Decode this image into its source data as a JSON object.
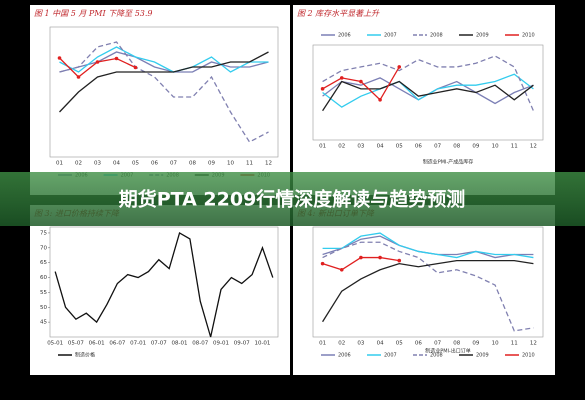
{
  "banner": {
    "title": "期货PTA 2209行情深度解读与趋势预测"
  },
  "chart_data": [
    {
      "type": "line",
      "title": "图 1 中国 5 月 PMI 下降至 53.9",
      "legend": "bottom",
      "categories": [
        "01",
        "02",
        "03",
        "04",
        "05",
        "06",
        "07",
        "08",
        "09",
        "10",
        "11",
        "12"
      ],
      "ylim": [
        36,
        62
      ],
      "series": [
        {
          "name": "2006",
          "color": "#7b7fb5",
          "values": [
            53,
            54,
            55,
            57,
            56,
            54,
            53,
            53,
            55,
            54,
            54,
            55
          ]
        },
        {
          "name": "2007",
          "color": "#33ccee",
          "values": [
            55,
            53,
            56,
            58,
            56,
            55,
            53,
            54,
            56,
            53,
            55,
            55
          ]
        },
        {
          "name": "2008",
          "color": "#8080b0",
          "dash": true,
          "values": [
            53,
            54,
            58,
            59,
            54,
            52,
            48,
            48,
            52,
            45,
            39,
            41
          ]
        },
        {
          "name": "2009",
          "color": "#222222",
          "values": [
            45,
            49,
            52,
            53,
            53,
            53,
            53,
            54,
            54,
            55,
            55,
            57
          ]
        },
        {
          "name": "2010",
          "color": "#e02020",
          "markers": true,
          "values": [
            55.8,
            52,
            55,
            55.7,
            53.9,
            null,
            null,
            null,
            null,
            null,
            null,
            null
          ]
        }
      ]
    },
    {
      "type": "line",
      "title": "图 2 库存水平显著上升",
      "legend": "top",
      "note": "制造业PMI-产成品库存",
      "categories": [
        "01",
        "02",
        "03",
        "04",
        "05",
        "06",
        "07",
        "08",
        "09",
        "10",
        "11",
        "12"
      ],
      "ylim": [
        36,
        62
      ],
      "series": [
        {
          "name": "2006",
          "color": "#7b7fb5",
          "values": [
            48,
            52,
            51,
            53,
            50,
            47,
            50,
            52,
            49,
            46,
            49,
            51
          ]
        },
        {
          "name": "2007",
          "color": "#33ccee",
          "values": [
            49,
            45,
            48,
            50,
            52,
            47,
            50,
            51,
            51,
            52,
            54,
            50
          ]
        },
        {
          "name": "2008",
          "color": "#8080b0",
          "dash": true,
          "values": [
            52,
            55,
            56,
            57,
            55,
            58,
            56,
            56,
            57,
            59,
            56,
            44
          ]
        },
        {
          "name": "2009",
          "color": "#222222",
          "values": [
            44,
            52,
            50,
            50,
            52,
            48,
            49,
            50,
            49,
            51,
            47,
            51
          ]
        },
        {
          "name": "2010",
          "color": "#e02020",
          "markers": true,
          "values": [
            50,
            53,
            52,
            47,
            56,
            null,
            null,
            null,
            null,
            null,
            null,
            null
          ]
        }
      ]
    },
    {
      "type": "line",
      "title": "图 3: 进口价格持续下降",
      "legend": "bottom",
      "categories": [
        "05-01",
        null,
        "05-07",
        null,
        "06-01",
        null,
        "06-07",
        null,
        "07-01",
        null,
        "07-07",
        null,
        "08-01",
        null,
        "08-07",
        null,
        "09-01",
        null,
        "09-07",
        null,
        "10-01",
        null
      ],
      "ylim": [
        40,
        77
      ],
      "yticks": [
        45,
        50,
        55,
        60,
        65,
        70,
        75
      ],
      "series": [
        {
          "name": "制造价格",
          "color": "#111111",
          "values": [
            62,
            50,
            46,
            48,
            45,
            51,
            58,
            61,
            60,
            62,
            66,
            63,
            75,
            73,
            52,
            40,
            56,
            60,
            58,
            61,
            70,
            60
          ]
        }
      ]
    },
    {
      "type": "line",
      "title": "图 4: 新出口订单下降",
      "legend": "bottom",
      "note": "制造业PMI-出口订单",
      "categories": [
        "01",
        "02",
        "03",
        "04",
        "05",
        "06",
        "07",
        "08",
        "09",
        "10",
        "11",
        "12"
      ],
      "ylim": [
        28,
        64
      ],
      "series": [
        {
          "name": "2006",
          "color": "#7b7fb5",
          "values": [
            55,
            57,
            60,
            61,
            58,
            56,
            55,
            55,
            56,
            54,
            55,
            55
          ]
        },
        {
          "name": "2007",
          "color": "#33ccee",
          "values": [
            57,
            57,
            61,
            62,
            58,
            56,
            55,
            54,
            56,
            55,
            55,
            54
          ]
        },
        {
          "name": "2008",
          "color": "#8080b0",
          "dash": true,
          "values": [
            54,
            57,
            59,
            59,
            56,
            54,
            49,
            50,
            48,
            45,
            30,
            31
          ]
        },
        {
          "name": "2009",
          "color": "#222222",
          "values": [
            33,
            43,
            47,
            50,
            52,
            51,
            52,
            53,
            53,
            53,
            53,
            52
          ]
        },
        {
          "name": "2010",
          "color": "#e02020",
          "markers": true,
          "values": [
            52,
            50,
            54,
            54,
            53,
            null,
            null,
            null,
            null,
            null,
            null,
            null
          ]
        }
      ]
    }
  ]
}
